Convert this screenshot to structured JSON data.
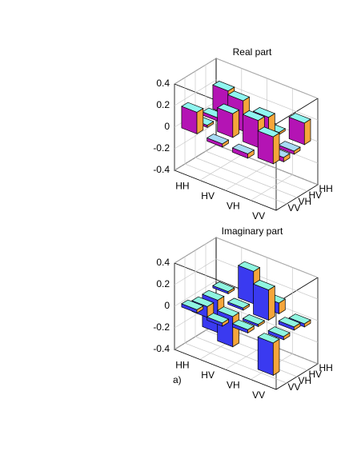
{
  "chart_data": [
    {
      "type": "bar3d",
      "title": "Real part",
      "categories": [
        "HH",
        "HV",
        "VH",
        "VV"
      ],
      "values": [
        [
          0.22,
          0.03,
          0.02,
          0.2
        ],
        [
          0.03,
          0.28,
          0.22,
          -0.03
        ],
        [
          0.02,
          0.22,
          0.25,
          -0.04
        ],
        [
          0.2,
          -0.03,
          -0.04,
          0.25
        ]
      ],
      "zlim": [
        -0.4,
        0.4
      ],
      "zticks": [
        -0.4,
        -0.2,
        0,
        0.2,
        0.4
      ],
      "grid": true,
      "colors": {
        "front": "#b414b4",
        "side": "#f5a53a",
        "top": "#8ff5f0",
        "negative_top": "#a9dcf5"
      }
    },
    {
      "type": "bar3d",
      "title": "Imaginary  part",
      "categories": [
        "HH",
        "HV",
        "VH",
        "VV"
      ],
      "values": [
        [
          0.02,
          0.3,
          0.1,
          -0.03
        ],
        [
          -0.3,
          0.02,
          0.28,
          0.03
        ],
        [
          -0.1,
          -0.28,
          0.02,
          -0.03
        ],
        [
          0.03,
          -0.03,
          0.03,
          -0.3
        ]
      ],
      "zlim": [
        -0.4,
        0.4
      ],
      "zticks": [
        -0.4,
        -0.2,
        0,
        0.2,
        0.4
      ],
      "grid": true,
      "colors": {
        "front": "#3a3af0",
        "side": "#f5a53a",
        "top": "#8ff5e0",
        "negative_top": "#8ff5e0"
      },
      "annotation": "a)"
    }
  ]
}
